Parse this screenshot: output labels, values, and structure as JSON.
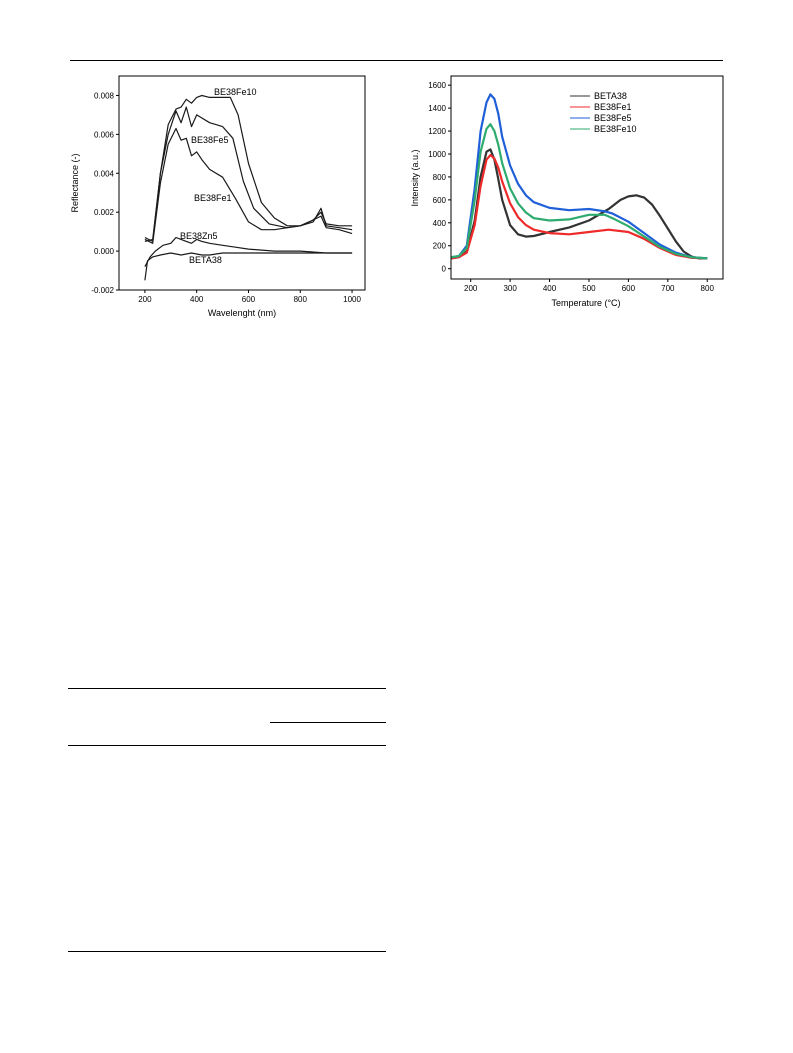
{
  "chart_data": [
    {
      "type": "line",
      "title": "",
      "xlabel": "Wavelenght (nm)",
      "ylabel": "Reflectance (-)",
      "xlim": [
        100,
        1050
      ],
      "ylim": [
        -0.002,
        0.009
      ],
      "xticks": [
        200,
        400,
        600,
        800,
        1000
      ],
      "yticks": [
        -0.002,
        0.0,
        0.002,
        0.004,
        0.006,
        0.008
      ],
      "ytick_labels": [
        "-0.002",
        "0.000",
        "0.002",
        "0.004",
        "0.006",
        "0.008"
      ],
      "line_color": "#1a1a1a",
      "grid": false,
      "legend": "none",
      "series": [
        {
          "name": "BE38Fe10",
          "x": [
            200,
            230,
            260,
            290,
            320,
            340,
            360,
            380,
            400,
            420,
            450,
            500,
            530,
            560,
            600,
            650,
            700,
            750,
            800,
            850,
            880,
            900,
            950,
            1000
          ],
          "y": [
            0.0005,
            0.0006,
            0.004,
            0.0065,
            0.0073,
            0.0074,
            0.0078,
            0.0076,
            0.0079,
            0.008,
            0.0079,
            0.0079,
            0.0079,
            0.007,
            0.0045,
            0.0025,
            0.0017,
            0.0013,
            0.0013,
            0.0015,
            0.0022,
            0.0013,
            0.0012,
            0.0011
          ]
        },
        {
          "name": "BE38Fe5",
          "x": [
            200,
            230,
            260,
            290,
            320,
            340,
            360,
            380,
            400,
            450,
            500,
            540,
            580,
            620,
            680,
            750,
            800,
            850,
            880,
            900,
            950,
            1000
          ],
          "y": [
            0.0007,
            0.0005,
            0.004,
            0.006,
            0.0072,
            0.0066,
            0.0074,
            0.0064,
            0.007,
            0.0066,
            0.0064,
            0.0058,
            0.0036,
            0.0022,
            0.0014,
            0.0012,
            0.0013,
            0.0016,
            0.002,
            0.0014,
            0.0013,
            0.0013
          ]
        },
        {
          "name": "BE38Fe1",
          "x": [
            200,
            230,
            260,
            290,
            320,
            340,
            360,
            380,
            400,
            420,
            450,
            500,
            550,
            600,
            650,
            700,
            750,
            800,
            850,
            880,
            900,
            950,
            1000
          ],
          "y": [
            0.0006,
            0.0004,
            0.0035,
            0.0055,
            0.0063,
            0.0057,
            0.0058,
            0.0049,
            0.0051,
            0.0047,
            0.0042,
            0.0038,
            0.0027,
            0.0015,
            0.0011,
            0.0011,
            0.0012,
            0.0013,
            0.0016,
            0.0018,
            0.0012,
            0.0011,
            0.0009
          ]
        },
        {
          "name": "BE38Zn5",
          "x": [
            200,
            220,
            240,
            270,
            300,
            320,
            340,
            360,
            380,
            400,
            420,
            450,
            500,
            550,
            600,
            700,
            800,
            900,
            1000
          ],
          "y": [
            -0.0008,
            -0.0003,
            0.0,
            0.0003,
            0.0004,
            0.0007,
            0.0006,
            0.0005,
            0.0004,
            0.0006,
            0.0005,
            0.0004,
            0.0003,
            0.0002,
            0.0001,
            0.0,
            0.0,
            -0.0001,
            -0.0001
          ]
        },
        {
          "name": "BETA38",
          "x": [
            200,
            210,
            230,
            260,
            300,
            340,
            380,
            420,
            450,
            500,
            600,
            700,
            800,
            900,
            1000
          ],
          "y": [
            -0.0015,
            -0.0005,
            -0.0003,
            -0.0002,
            -0.0001,
            -0.0002,
            -0.0001,
            -0.0002,
            -0.0002,
            -0.0001,
            -0.0001,
            -0.0001,
            -0.0001,
            -0.0001,
            -0.0001
          ]
        }
      ],
      "annotations": [
        "BE38Fe10",
        "BE38Fe5",
        "BE38Fe1",
        "BE38Zn5",
        "BETA38"
      ]
    },
    {
      "type": "line",
      "title": "",
      "xlabel": "Temperature (°C)",
      "ylabel": "Intensity (a.u.)",
      "xlim": [
        150,
        840
      ],
      "ylim": [
        -90,
        1680
      ],
      "xticks": [
        200,
        300,
        400,
        500,
        600,
        700,
        800
      ],
      "yticks": [
        0,
        200,
        400,
        600,
        800,
        1000,
        1200,
        1400,
        1600
      ],
      "grid": false,
      "legend": "top-right",
      "series": [
        {
          "name": "BETA38",
          "color": "#333333",
          "x": [
            150,
            170,
            190,
            210,
            225,
            240,
            250,
            260,
            270,
            280,
            300,
            320,
            340,
            360,
            400,
            450,
            500,
            550,
            580,
            600,
            620,
            640,
            660,
            680,
            700,
            720,
            740,
            760,
            780,
            800
          ],
          "y": [
            90,
            100,
            150,
            420,
            800,
            1020,
            1040,
            950,
            780,
            600,
            380,
            300,
            280,
            285,
            320,
            360,
            420,
            520,
            600,
            630,
            640,
            620,
            560,
            460,
            350,
            240,
            150,
            105,
            90,
            90
          ]
        },
        {
          "name": "BE38Fe1",
          "color": "#ee2a2a",
          "x": [
            150,
            170,
            190,
            210,
            225,
            240,
            250,
            260,
            270,
            280,
            300,
            320,
            340,
            360,
            400,
            450,
            500,
            550,
            600,
            640,
            680,
            720,
            760,
            800
          ],
          "y": [
            90,
            100,
            140,
            380,
            720,
            950,
            990,
            960,
            880,
            760,
            570,
            450,
            380,
            340,
            310,
            300,
            320,
            340,
            320,
            260,
            180,
            120,
            95,
            90
          ]
        },
        {
          "name": "BE38Fe5",
          "color": "#1f5fd8",
          "x": [
            150,
            170,
            190,
            210,
            225,
            240,
            250,
            260,
            270,
            280,
            300,
            320,
            340,
            360,
            400,
            450,
            500,
            540,
            560,
            600,
            640,
            680,
            720,
            760,
            800
          ],
          "y": [
            100,
            110,
            200,
            700,
            1200,
            1450,
            1520,
            1480,
            1350,
            1150,
            900,
            740,
            640,
            580,
            530,
            510,
            520,
            500,
            480,
            410,
            310,
            210,
            140,
            100,
            90
          ]
        },
        {
          "name": "BE38Fe10",
          "color": "#2eab6e",
          "x": [
            150,
            170,
            190,
            210,
            225,
            240,
            250,
            260,
            270,
            280,
            300,
            320,
            340,
            360,
            400,
            450,
            500,
            540,
            560,
            600,
            640,
            680,
            720,
            760,
            800
          ],
          "y": [
            100,
            110,
            180,
            600,
            1020,
            1220,
            1260,
            1200,
            1080,
            920,
            700,
            570,
            490,
            440,
            420,
            430,
            470,
            470,
            440,
            370,
            280,
            190,
            130,
            100,
            90
          ]
        }
      ],
      "legend_entries": [
        "BETA38",
        "BE38Fe1",
        "BE38Fe5",
        "BE38Fe10"
      ]
    }
  ]
}
